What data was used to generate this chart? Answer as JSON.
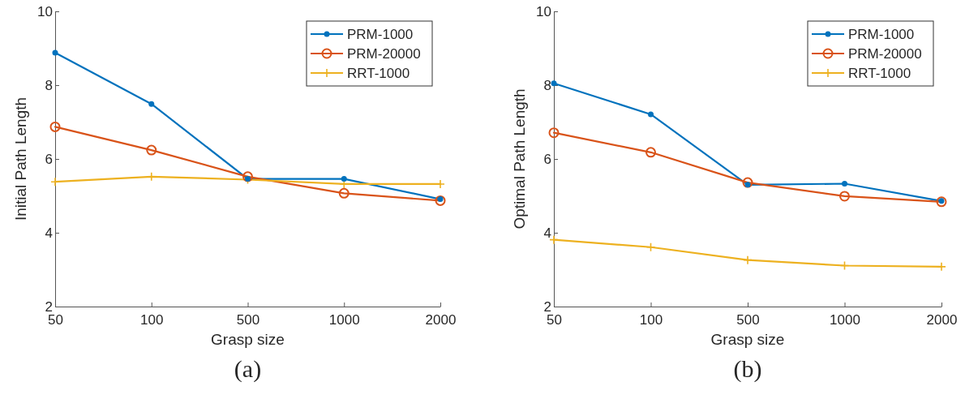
{
  "chart_data": [
    {
      "type": "line",
      "xlabel": "Grasp size",
      "ylabel": "Initial Path Length",
      "annotations": [
        "(a)"
      ],
      "categories": [
        "50",
        "100",
        "500",
        "1000",
        "2000"
      ],
      "ylim": [
        2,
        10
      ],
      "yticks": [
        2,
        4,
        6,
        8,
        10
      ],
      "grid": false,
      "legend": "top right",
      "series": [
        {
          "name": "PRM-1000",
          "color": "#0072bd",
          "marker": "circle",
          "values": [
            8.88,
            7.49,
            5.46,
            5.46,
            4.91
          ]
        },
        {
          "name": "PRM-20000",
          "color": "#d95319",
          "marker": "circle",
          "values": [
            6.87,
            6.24,
            5.52,
            5.07,
            4.87
          ]
        },
        {
          "name": "RRT-1000",
          "color": "#edb120",
          "marker": "cross",
          "values": [
            5.38,
            5.52,
            5.44,
            5.32,
            5.32
          ]
        }
      ]
    },
    {
      "type": "line",
      "xlabel": "Grasp size",
      "ylabel": "Optimal Path Length",
      "annotations": [
        "(b)"
      ],
      "categories": [
        "50",
        "100",
        "500",
        "1000",
        "2000"
      ],
      "ylim": [
        2,
        10
      ],
      "yticks": [
        2,
        4,
        6,
        8,
        10
      ],
      "grid": false,
      "legend": "top right",
      "series": [
        {
          "name": "PRM-1000",
          "color": "#0072bd",
          "marker": "circle",
          "values": [
            8.05,
            7.21,
            5.3,
            5.33,
            4.86
          ]
        },
        {
          "name": "PRM-20000",
          "color": "#d95319",
          "marker": "circle",
          "values": [
            6.71,
            6.18,
            5.36,
            4.99,
            4.84
          ]
        },
        {
          "name": "RRT-1000",
          "color": "#edb120",
          "marker": "cross",
          "values": [
            3.81,
            3.61,
            3.26,
            3.11,
            3.08
          ]
        }
      ]
    }
  ]
}
